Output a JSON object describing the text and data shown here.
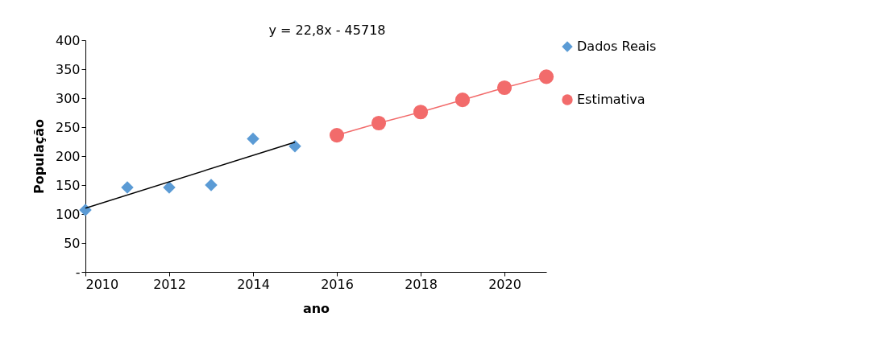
{
  "chart_data": {
    "type": "scatter",
    "xlabel": "ano",
    "ylabel": "População",
    "annotations": [
      "y = 22,8x - 45718"
    ],
    "xlim": [
      2010,
      2021
    ],
    "xticks": [
      2010,
      2012,
      2014,
      2016,
      2018,
      2020
    ],
    "ylim": [
      0,
      400
    ],
    "yticks": [
      {
        "value": 0,
        "label": "-"
      },
      50,
      100,
      150,
      200,
      250,
      300,
      350,
      400
    ],
    "grid": false,
    "legend": "right",
    "series": [
      {
        "name": "Dados Reais",
        "marker": "diamond",
        "color": "#5b9bd5",
        "x": [
          2010,
          2011,
          2012,
          2013,
          2014,
          2015
        ],
        "values": [
          107,
          146,
          146,
          150,
          230,
          217
        ]
      },
      {
        "name": "Estimativa",
        "type": "line",
        "marker": "circle",
        "color": "#f26b6b",
        "x": [
          2016,
          2017,
          2018,
          2019,
          2020,
          2021
        ],
        "values": [
          236,
          257,
          276,
          297,
          318,
          337
        ]
      },
      {
        "type": "line",
        "marker": "none",
        "color": "#000000",
        "x": [
          2010,
          2015
        ],
        "values": [
          110,
          224
        ]
      }
    ]
  }
}
